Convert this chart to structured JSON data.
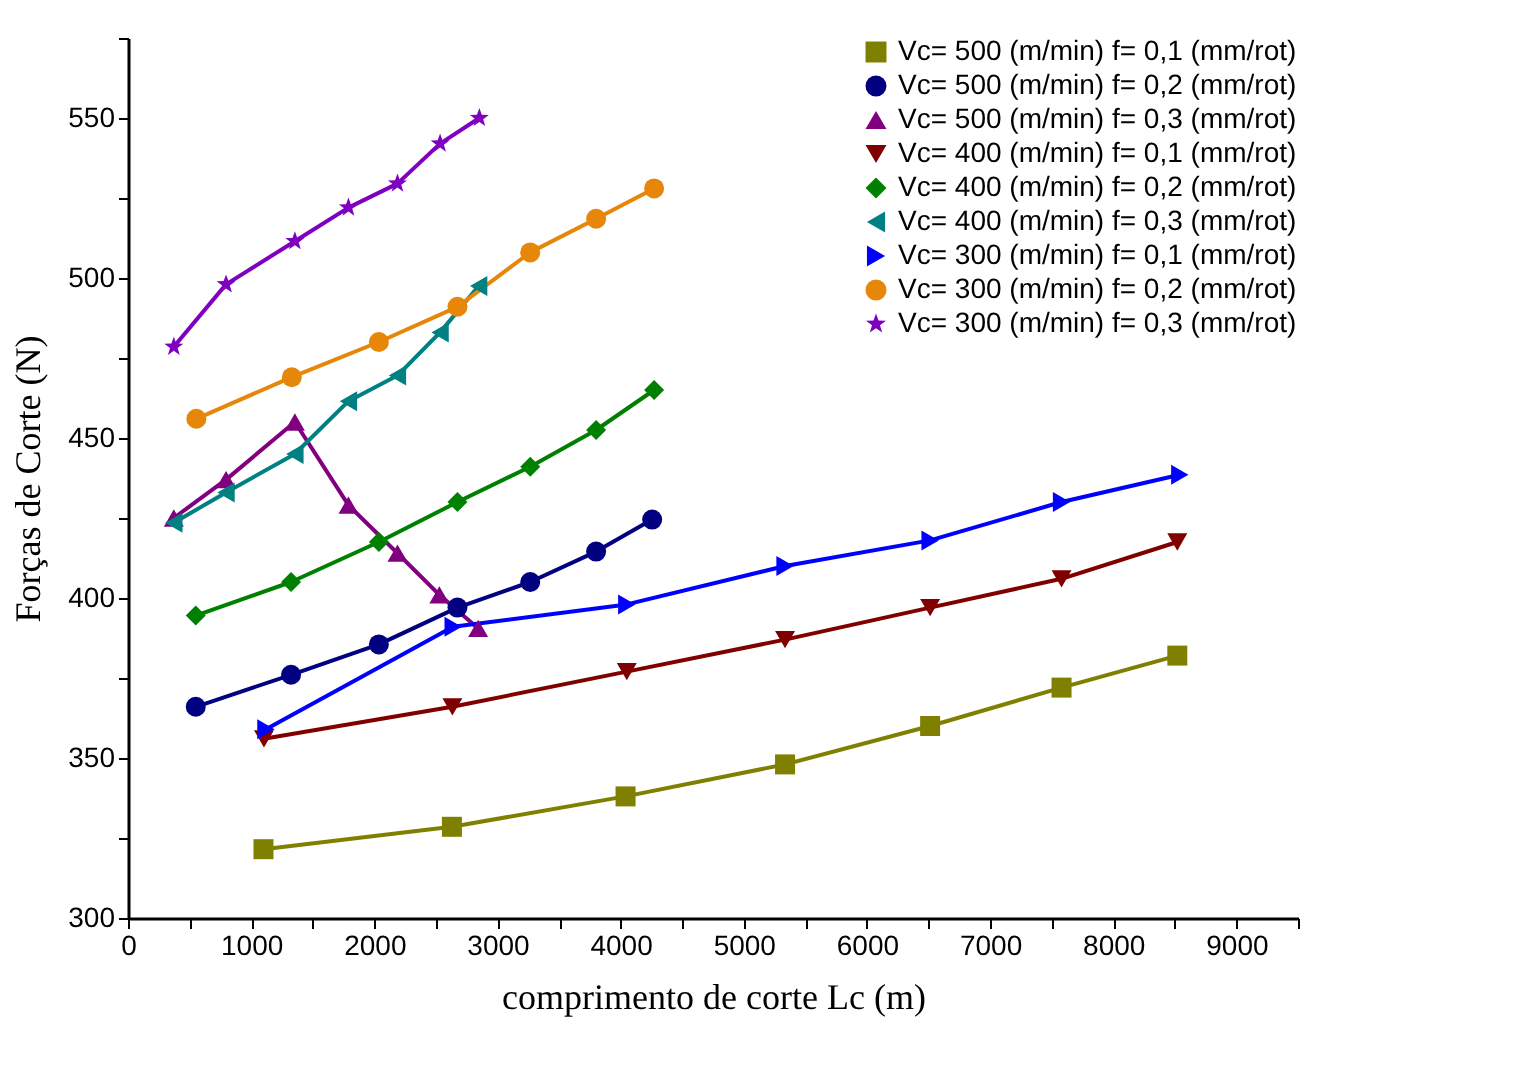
{
  "chart_data": {
    "type": "line",
    "xlabel": "comprimento de corte Lc (m)",
    "ylabel": "Forças de Corte (N)",
    "xlim": [
      0,
      9500
    ],
    "ylim": [
      300,
      575
    ],
    "xticks": [
      0,
      {
        "value": 500,
        "label": null
      },
      1000,
      {
        "value": 1500,
        "label": null
      },
      2000,
      {
        "value": 2500,
        "label": null
      },
      3000,
      {
        "value": 3500,
        "label": null
      },
      4000,
      {
        "value": 4500,
        "label": null
      },
      5000,
      {
        "value": 5500,
        "label": null
      },
      6000,
      {
        "value": 6500,
        "label": null
      },
      7000,
      {
        "value": 7500,
        "label": null
      },
      8000,
      {
        "value": 8500,
        "label": null
      },
      9000,
      {
        "value": 9500,
        "label": null
      }
    ],
    "yticks": [
      300,
      {
        "value": 325,
        "label": null
      },
      350,
      {
        "value": 375,
        "label": null
      },
      400,
      {
        "value": 425,
        "label": null
      },
      450,
      {
        "value": 475,
        "label": null
      },
      500,
      {
        "value": 525,
        "label": null
      },
      550,
      {
        "value": 575,
        "label": null
      }
    ],
    "grid": false,
    "legend": "top right",
    "line_style": "solid",
    "series": [
      {
        "name": "Vc= 500 (m/min) f= 0,1 (mm/rot)",
        "color": "#808000",
        "marker": "square",
        "x": [
          1100,
          2630,
          4040,
          5335,
          6513,
          7580,
          8520
        ],
        "values": [
          321.5,
          328.5,
          338,
          348,
          360,
          372,
          382
        ]
      },
      {
        "name": "Vc= 500 (m/min) f= 0,2 (mm/rot)",
        "color": "#000080",
        "marker": "circle",
        "x": [
          550,
          1324,
          2037,
          2675,
          3266,
          3801,
          4256
        ],
        "values": [
          366,
          376,
          385.5,
          397,
          405,
          414.5,
          424.5
        ]
      },
      {
        "name": "Vc= 500 (m/min) f= 0,3 (mm/rot)",
        "color": "#800080",
        "marker": "triangle",
        "x": [
          372,
          796,
          1355,
          1790,
          2188,
          2528,
          2843
        ],
        "values": [
          425,
          437,
          455,
          429,
          414,
          401,
          390.5
        ]
      },
      {
        "name": "Vc= 400 (m/min) f= 0,1 (mm/rot)",
        "color": "#800000",
        "marker": "triangle-down",
        "x": [
          1104,
          2634,
          4050,
          5335,
          6513,
          7580,
          8520
        ],
        "values": [
          356,
          366,
          377,
          387,
          397,
          406,
          417.5
        ]
      },
      {
        "name": "Vc= 400 (m/min) f= 0,2 (mm/rot)",
        "color": "#008000",
        "marker": "diamond",
        "x": [
          550,
          1324,
          2037,
          2675,
          3266,
          3801,
          4272
        ],
        "values": [
          394.5,
          405,
          417.5,
          430,
          441,
          452.5,
          465
        ]
      },
      {
        "name": "Vc= 400 (m/min) f= 0,3 (mm/rot)",
        "color": "#008080",
        "marker": "triangle-left",
        "x": [
          372,
          796,
          1355,
          1790,
          2188,
          2534,
          2847
        ],
        "values": [
          423.5,
          433,
          445,
          461.5,
          469.5,
          483,
          497.5
        ]
      },
      {
        "name": "Vc= 300 (m/min) f= 0,1 (mm/rot)",
        "color": "#0000ff",
        "marker": "triangle-right",
        "x": [
          1120,
          2640,
          4050,
          5335,
          6513,
          7580,
          8540
        ],
        "values": [
          359,
          391,
          398,
          410,
          418,
          430,
          438.5
        ]
      },
      {
        "name": "Vc= 300 (m/min) f= 0,2 (mm/rot)",
        "color": "#e6870a",
        "marker": "circle",
        "x": [
          555,
          1330,
          2037,
          2675,
          3266,
          3801,
          4272
        ],
        "values": [
          456,
          469,
          480,
          491,
          508,
          518.5,
          528
        ]
      },
      {
        "name": "Vc= 300 (m/min) f= 0,3 (mm/rot)",
        "color": "#8000c0",
        "marker": "star",
        "x": [
          372,
          796,
          1355,
          1790,
          2188,
          2534,
          2853
        ],
        "values": [
          478.5,
          498,
          511.5,
          522,
          529.5,
          542,
          550
        ]
      }
    ]
  }
}
